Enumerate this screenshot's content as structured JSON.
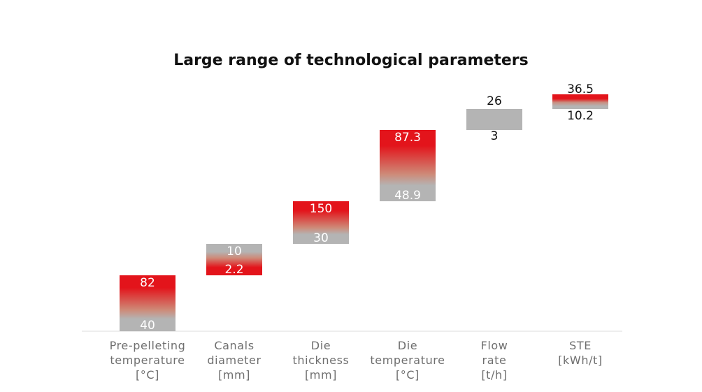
{
  "colors": {
    "accent": "#e3141b",
    "neutral": "#b4b4b4",
    "axis": "#dddddd",
    "label": "#6f6f6f"
  },
  "chart_data": {
    "type": "floating-bar",
    "title": "Large range of technological parameters",
    "categories": [
      {
        "id": "pre-pelleting-temperature",
        "label_lines": [
          "Pre-pelleting",
          "temperature",
          "[°C]"
        ]
      },
      {
        "id": "canals-diameter",
        "label_lines": [
          "Canals",
          "diameter",
          "[mm]"
        ]
      },
      {
        "id": "die-thickness",
        "label_lines": [
          "Die",
          "thickness",
          "[mm]"
        ]
      },
      {
        "id": "die-temperature",
        "label_lines": [
          "Die",
          "temperature",
          "[°C]"
        ]
      },
      {
        "id": "flow-rate",
        "label_lines": [
          "Flow",
          "rate",
          "[t/h]"
        ]
      },
      {
        "id": "ste",
        "label_lines": [
          "STE",
          "[kWh/t]"
        ]
      }
    ],
    "ranges": [
      {
        "min": 40,
        "max": 82,
        "min_label": "40",
        "max_label": "82",
        "red_end": "top"
      },
      {
        "min": 2.2,
        "max": 10,
        "min_label": "2.2",
        "max_label": "10",
        "red_end": "bottom"
      },
      {
        "min": 30,
        "max": 150,
        "min_label": "30",
        "max_label": "150",
        "red_end": "top"
      },
      {
        "min": 48.9,
        "max": 87.3,
        "min_label": "48.9",
        "max_label": "87.3",
        "red_end": "top"
      },
      {
        "min": 3,
        "max": 26,
        "min_label": "3",
        "max_label": "26",
        "red_end": "none"
      },
      {
        "min": 10.2,
        "max": 36.5,
        "min_label": "10.2",
        "max_label": "36.5",
        "red_end": "top-band"
      }
    ],
    "grid": false,
    "legend": "none"
  }
}
